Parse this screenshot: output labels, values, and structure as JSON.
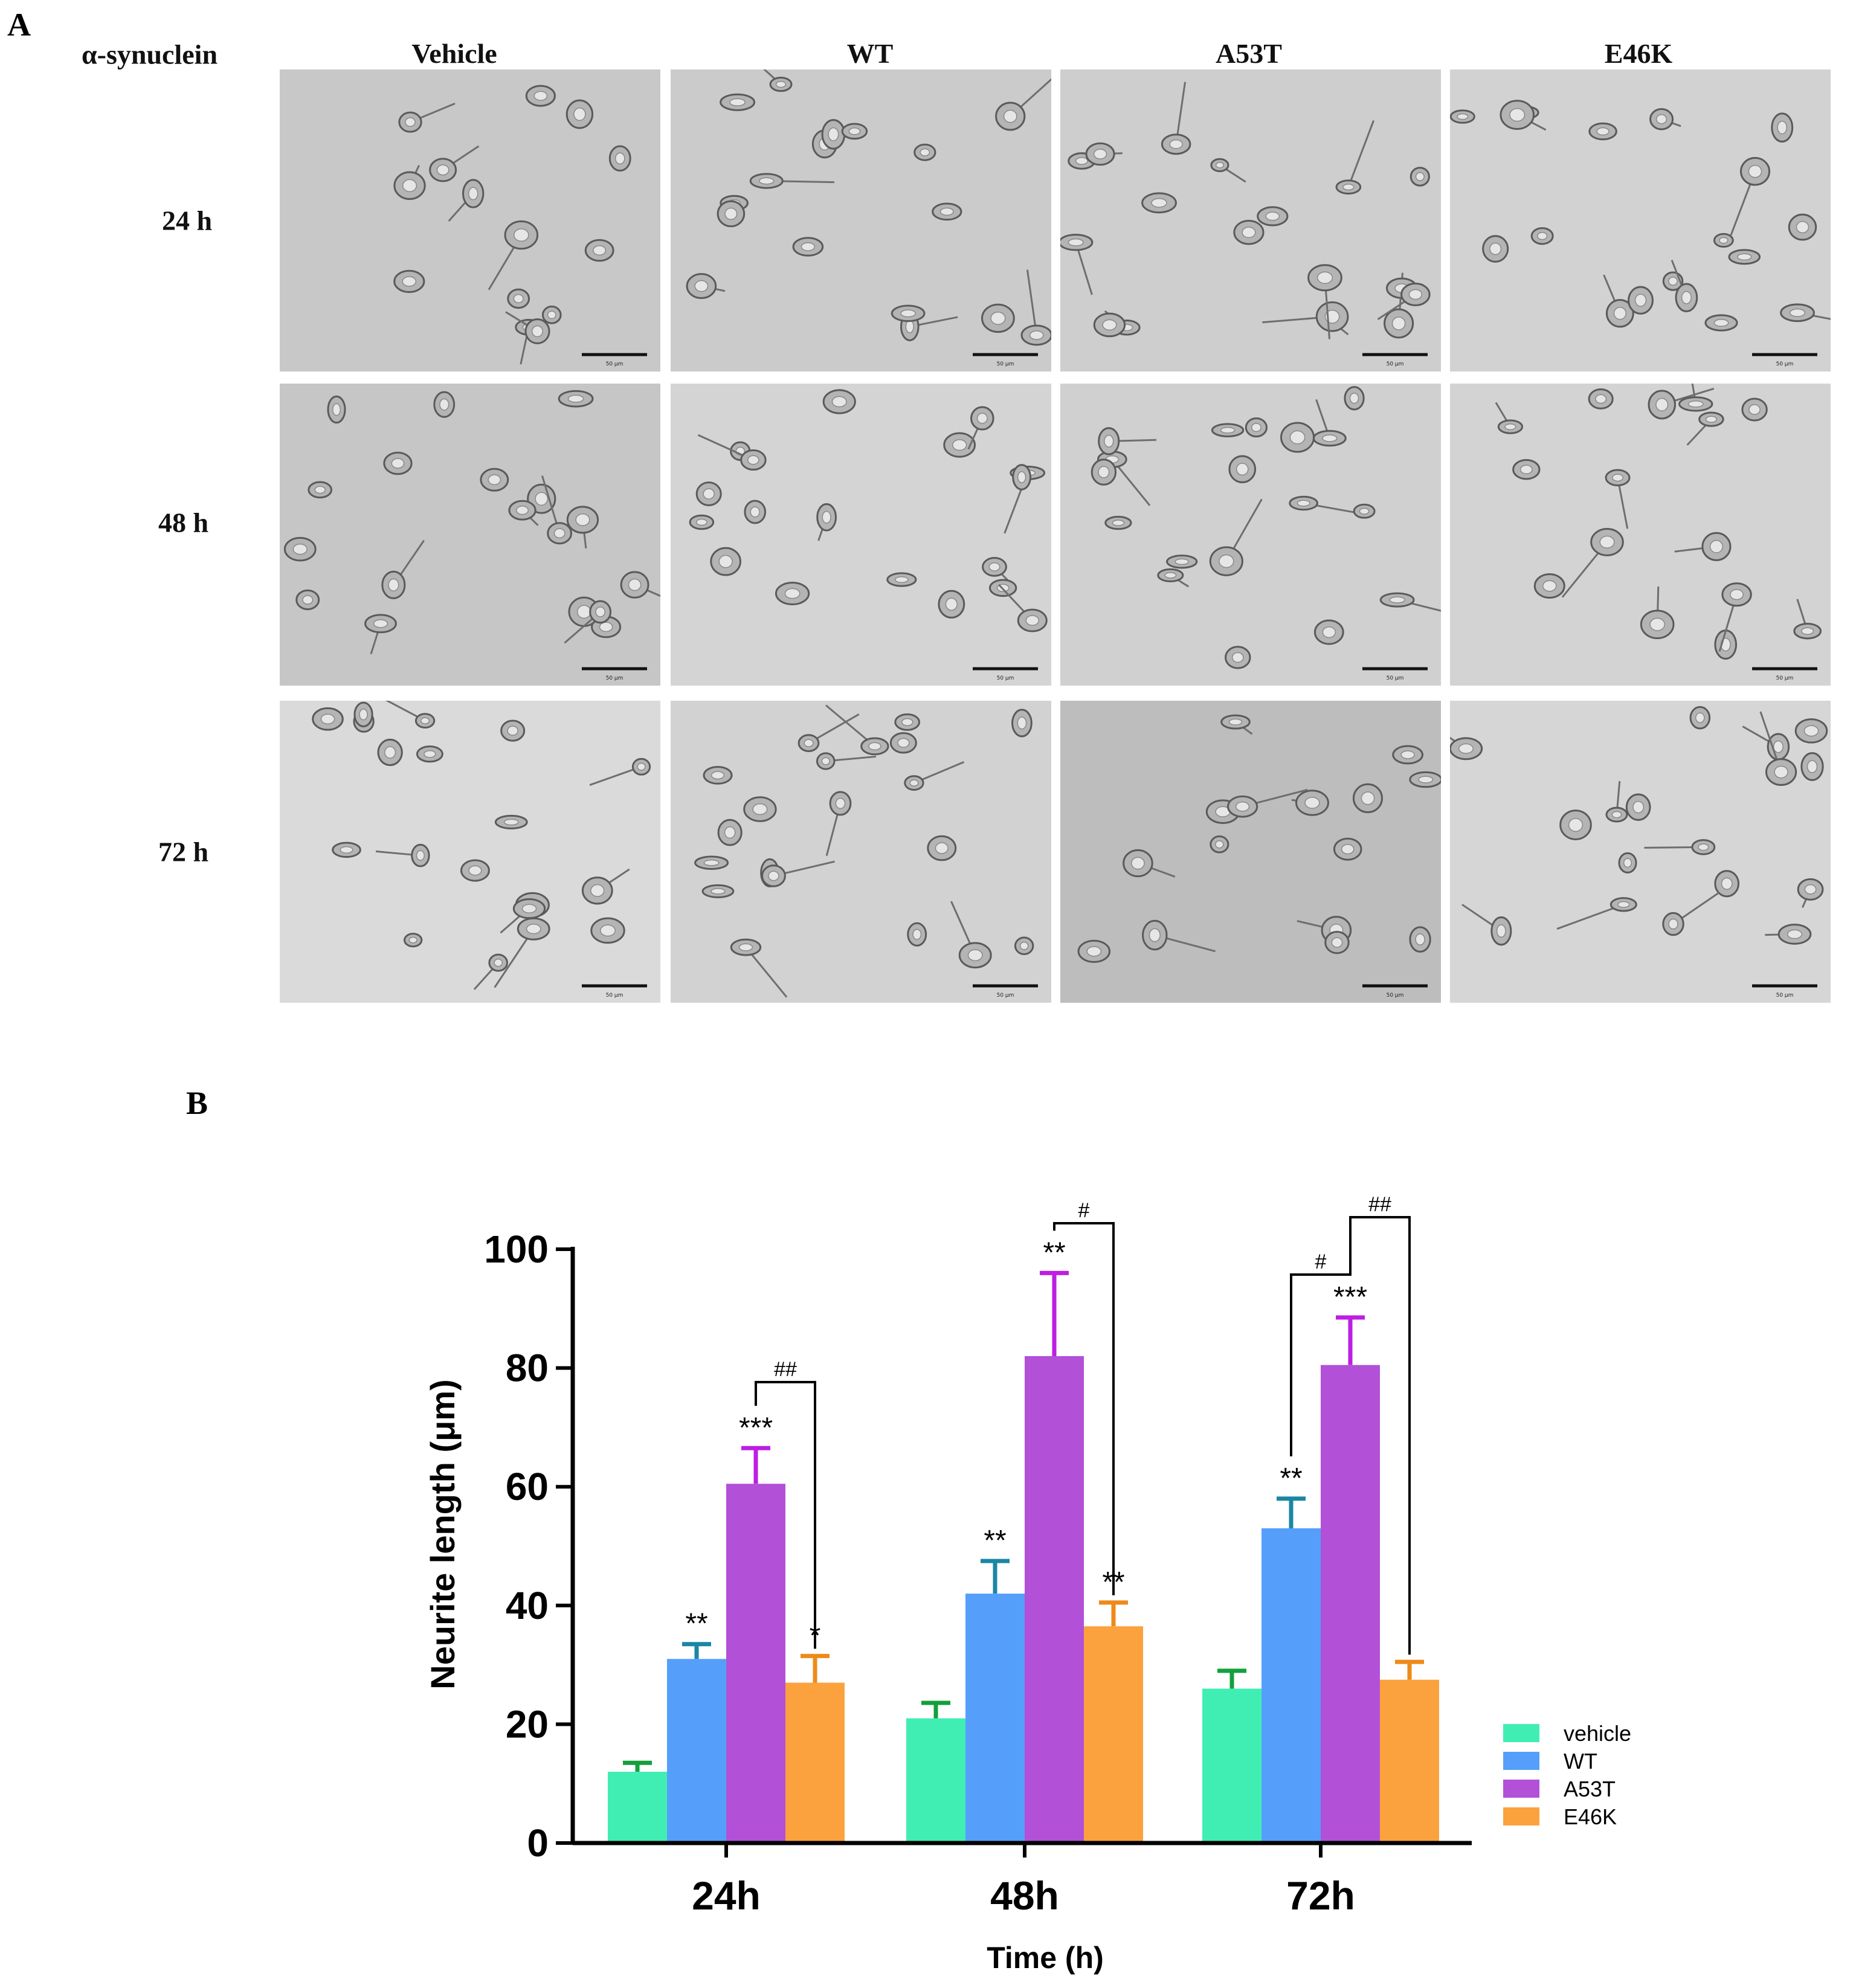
{
  "panel_a": {
    "letter": "A",
    "row_title": "α-synuclein",
    "columns": [
      "Vehicle",
      "WT",
      "A53T",
      "E46K"
    ],
    "rows": [
      "24 h",
      "48 h",
      "72 h"
    ],
    "scale_bar_label": "50 μm",
    "tile_tones": [
      [
        "#c8c8c8",
        "#cbcbcb",
        "#cecece",
        "#d2d2d2"
      ],
      [
        "#c6c6c6",
        "#d4d4d4",
        "#d0d0d0",
        "#d3d3d3"
      ],
      [
        "#dadada",
        "#d2d2d2",
        "#bdbdbd",
        "#d6d6d6"
      ]
    ]
  },
  "panel_b": {
    "letter": "B"
  },
  "chart_data": {
    "type": "bar",
    "title": "",
    "xlabel": "Time (h)",
    "ylabel": "Neurite length (μm)",
    "ylim": [
      0,
      100
    ],
    "yticks": [
      0,
      20,
      40,
      60,
      80,
      100
    ],
    "categories": [
      "24h",
      "48h",
      "72h"
    ],
    "legend_position": "right",
    "series": [
      {
        "name": "vehicle",
        "color": "#40eeb4",
        "values": [
          12,
          21,
          26
        ],
        "errors": [
          1.5,
          2.6,
          3
        ]
      },
      {
        "name": "WT",
        "color": "#559ffb",
        "values": [
          31,
          42,
          53
        ],
        "errors": [
          2.5,
          5.5,
          5
        ]
      },
      {
        "name": "A53T",
        "color": "#b250d8",
        "values": [
          60.5,
          82,
          80.5
        ],
        "errors": [
          6,
          14,
          8
        ]
      },
      {
        "name": "E46K",
        "color": "#fba23e",
        "values": [
          27,
          36.5,
          27.5
        ],
        "errors": [
          4.5,
          4,
          3
        ]
      }
    ],
    "error_bar_colors": [
      "#12a03c",
      "#1a86a4",
      "#bd1ee2",
      "#ee8a1a"
    ],
    "significance_marks": [
      {
        "category": 0,
        "series": 1,
        "label": "**"
      },
      {
        "category": 0,
        "series": 2,
        "label": "***"
      },
      {
        "category": 0,
        "series": 3,
        "label": "*"
      },
      {
        "category": 1,
        "series": 1,
        "label": "**"
      },
      {
        "category": 1,
        "series": 2,
        "label": "**"
      },
      {
        "category": 1,
        "series": 3,
        "label": "**"
      },
      {
        "category": 2,
        "series": 1,
        "label": "**"
      },
      {
        "category": 2,
        "series": 2,
        "label": "***"
      }
    ],
    "comparison_brackets": [
      {
        "category": 0,
        "from": 2,
        "to": 3,
        "label": "##"
      },
      {
        "category": 1,
        "from": 2,
        "to": 3,
        "label": "#"
      },
      {
        "category": 2,
        "from": 1,
        "to": 2,
        "label": "#"
      },
      {
        "category": 2,
        "from": 2,
        "to": 3,
        "label": "##"
      }
    ]
  }
}
